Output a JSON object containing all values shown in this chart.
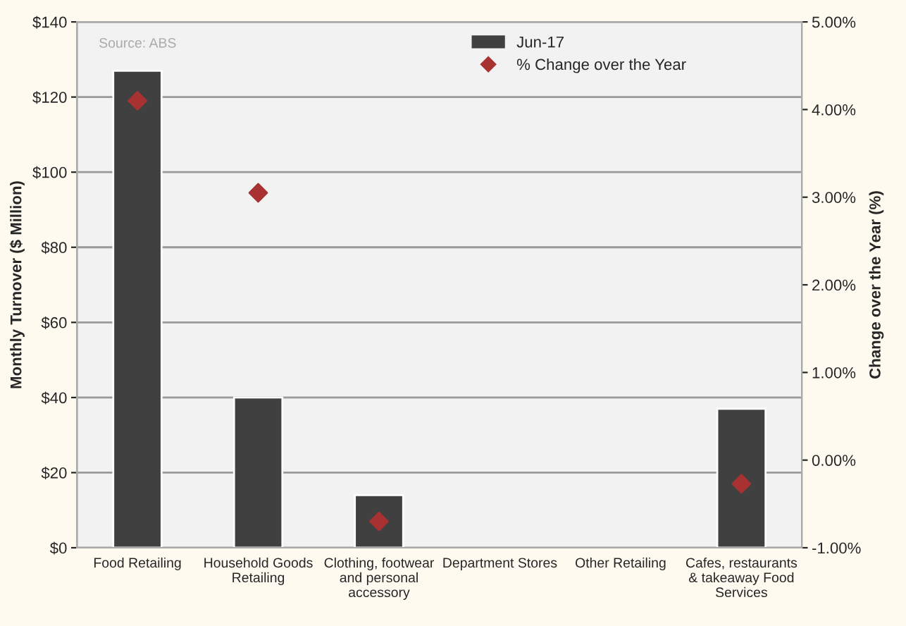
{
  "chart_data": {
    "type": "bar",
    "categories": [
      "Food Retailing",
      "Household Goods Retailing",
      "Clothing, footwear and personal accessory",
      "Department Stores",
      "Other Retailing",
      "Cafes, restaurants & takeaway Food Services"
    ],
    "series": [
      {
        "name": "Jun-17",
        "color": "#404040",
        "values": [
          127,
          40,
          14,
          null,
          null,
          37
        ]
      },
      {
        "name": "% Change over the Year",
        "type": "scatter",
        "axis": "y2",
        "marker": "diamond",
        "color": "#a83232",
        "values": [
          4.1,
          3.05,
          -0.7,
          null,
          null,
          -0.27
        ]
      }
    ],
    "ylabel": "Monthly Turnover ($ Million)",
    "y2label": "Change over the Year (%)",
    "ylim": [
      0,
      140
    ],
    "yticks": [
      {
        "value": 0,
        "label": "$0"
      },
      {
        "value": 20,
        "label": "$20"
      },
      {
        "value": 40,
        "label": "$40"
      },
      {
        "value": 60,
        "label": "$60"
      },
      {
        "value": 80,
        "label": "$80"
      },
      {
        "value": 100,
        "label": "$100"
      },
      {
        "value": 120,
        "label": "$120"
      },
      {
        "value": 140,
        "label": "$140"
      }
    ],
    "y2lim": [
      -1,
      5
    ],
    "y2ticks": [
      {
        "value": -1,
        "label": "-1.00%"
      },
      {
        "value": 0,
        "label": "0.00%"
      },
      {
        "value": 1,
        "label": "1.00%"
      },
      {
        "value": 2,
        "label": "2.00%"
      },
      {
        "value": 3,
        "label": "3.00%"
      },
      {
        "value": 4,
        "label": "4.00%"
      },
      {
        "value": 5,
        "label": "5.00%"
      }
    ],
    "grid": "y",
    "legend": "top right",
    "annotations": [
      "Source: ABS"
    ]
  }
}
